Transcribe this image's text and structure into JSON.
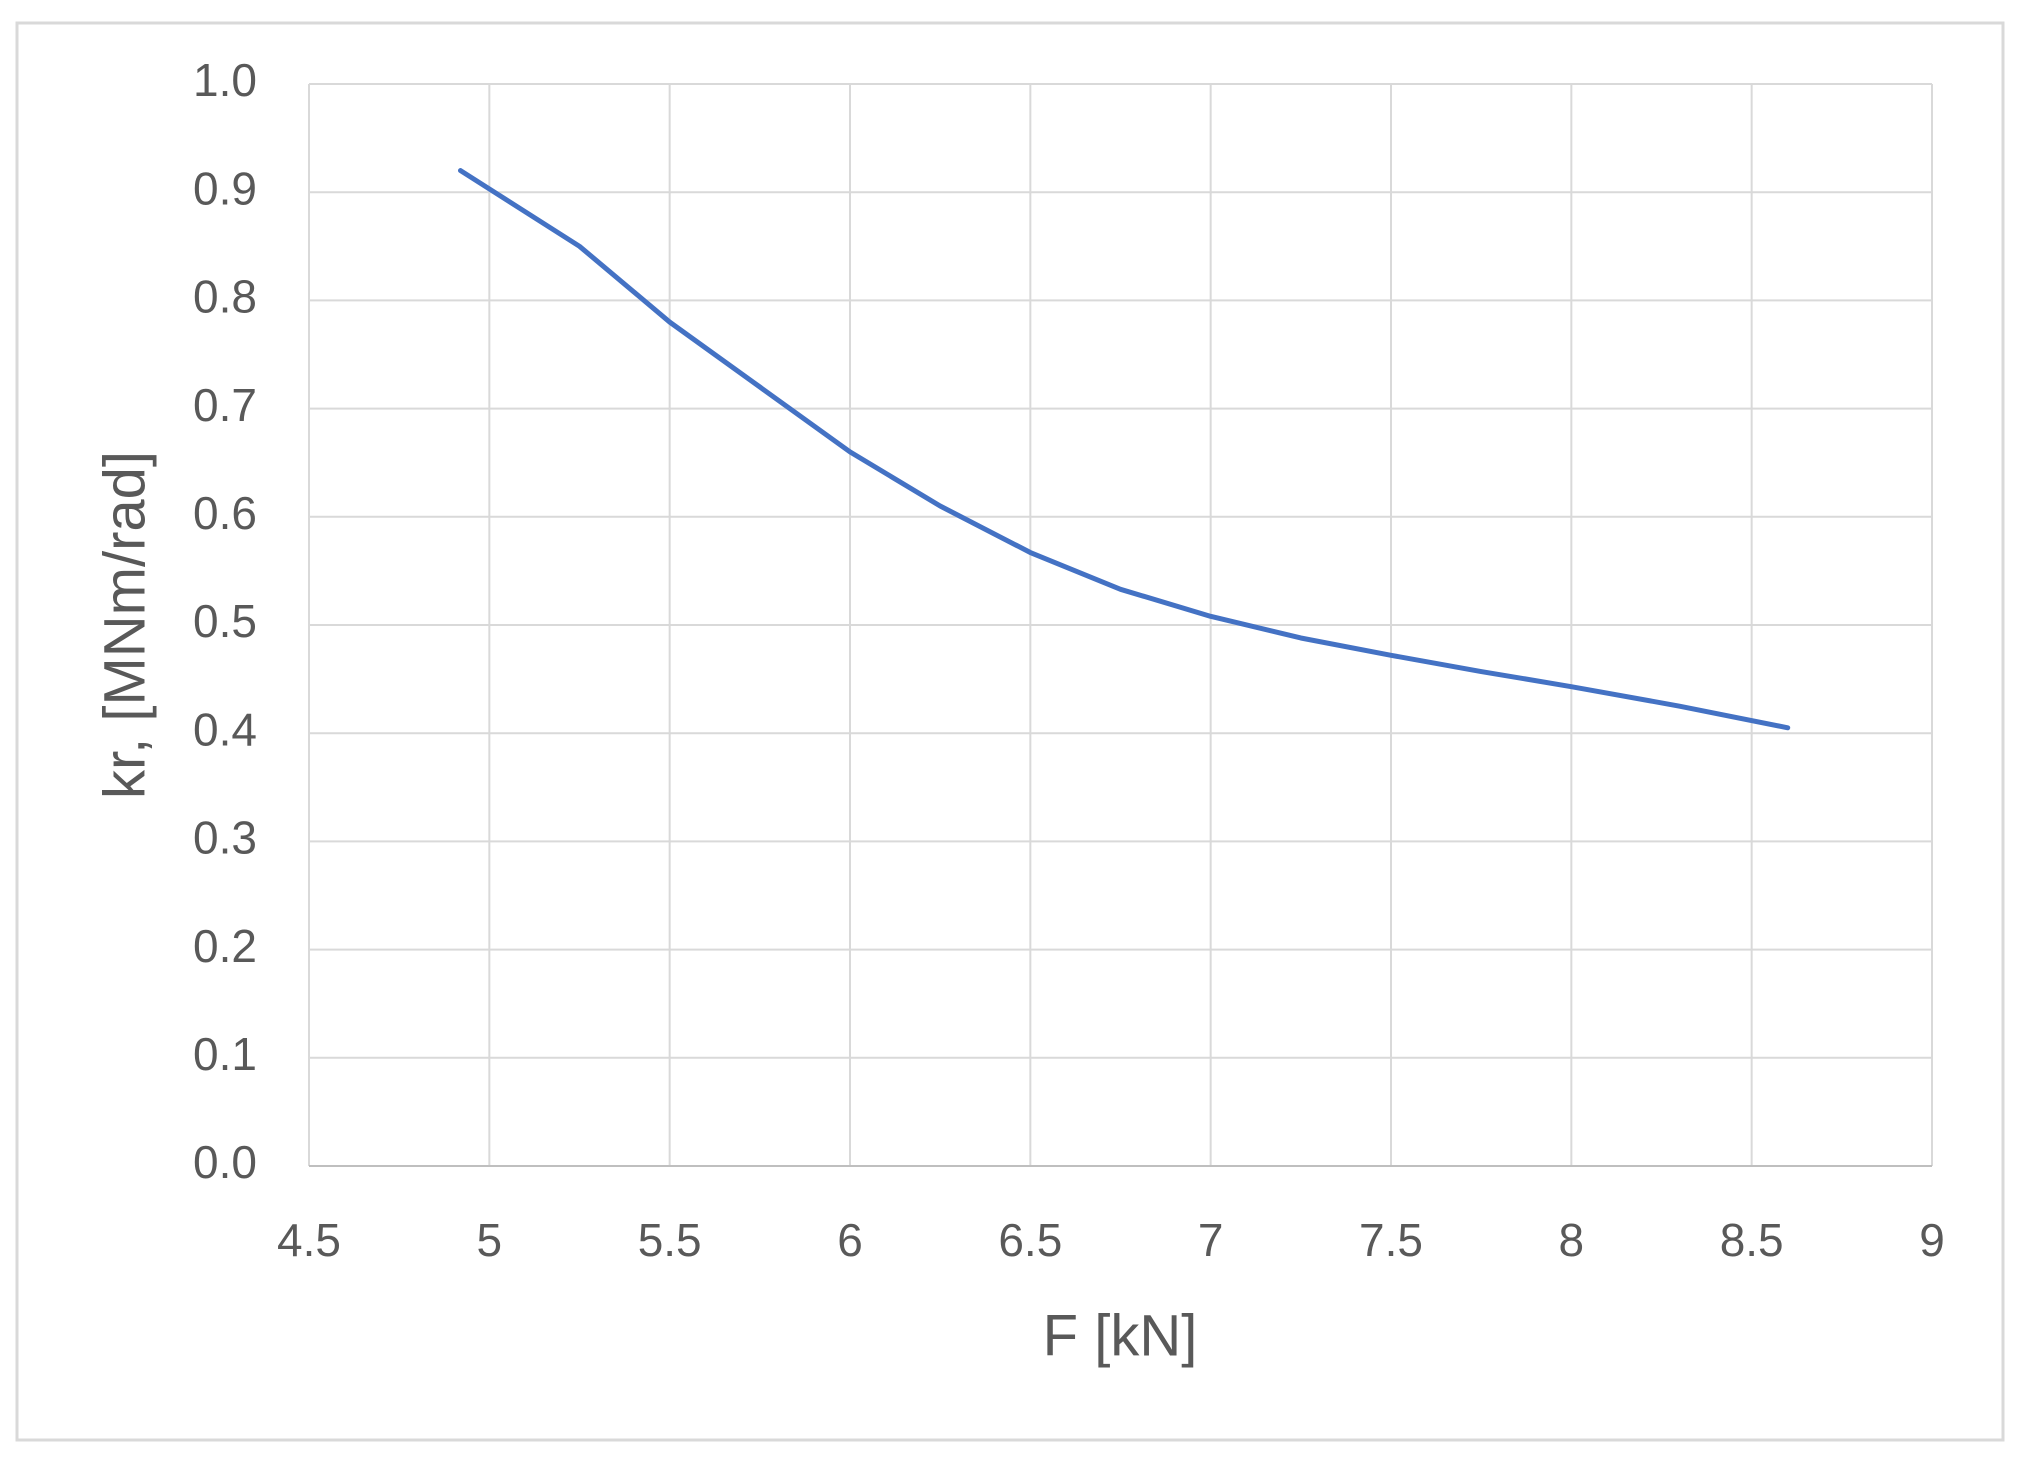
{
  "chart_data": {
    "type": "line",
    "xlabel": "F [kN]",
    "ylabel": "kr, [MNm/rad]",
    "series": [
      {
        "name": "kr",
        "color": "#4472c4",
        "x": [
          4.92,
          5.25,
          5.5,
          5.75,
          6,
          6.25,
          6.5,
          6.75,
          7,
          7.25,
          7.5,
          7.75,
          8,
          8.3,
          8.6
        ],
        "values": [
          0.92,
          0.85,
          0.78,
          0.72,
          0.66,
          0.61,
          0.567,
          0.533,
          0.508,
          0.488,
          0.472,
          0.457,
          0.443,
          0.425,
          0.405
        ]
      }
    ],
    "xlim": [
      4.5,
      9
    ],
    "xticks": [
      4.5,
      5,
      5.5,
      6,
      6.5,
      7,
      7.5,
      8,
      8.5,
      9
    ],
    "ylim": [
      0,
      1
    ],
    "yticks": [
      {
        "value": 0,
        "label": "0.0"
      },
      0.1,
      0.2,
      0.3,
      0.4,
      0.5,
      0.6,
      0.7,
      0.8,
      0.9,
      {
        "value": 1,
        "label": "1.0"
      }
    ],
    "grid": true
  }
}
